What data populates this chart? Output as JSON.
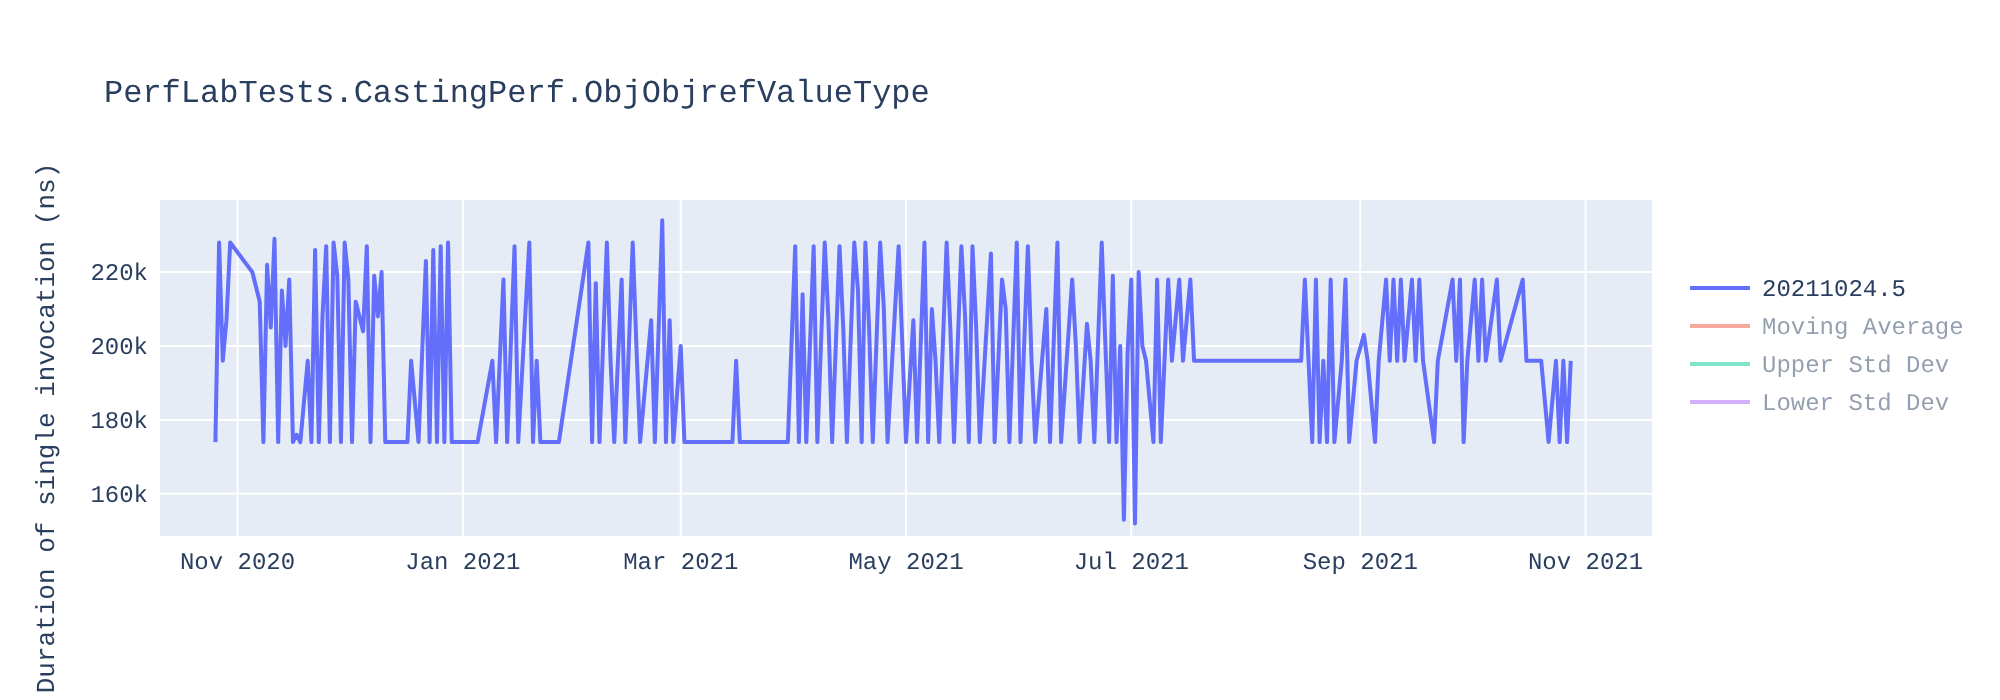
{
  "chart_data": {
    "type": "line",
    "title": "PerfLabTests.CastingPerf.ObjObjrefValueType",
    "ylabel": "Duration of single invocation (ns)",
    "xlim": [
      "2020-10-11",
      "2021-11-19"
    ],
    "xticks": [
      {
        "value": "2020-11-01",
        "label": "Nov 2020"
      },
      {
        "value": "2021-01-01",
        "label": "Jan 2021"
      },
      {
        "value": "2021-03-01",
        "label": "Mar 2021"
      },
      {
        "value": "2021-05-01",
        "label": "May 2021"
      },
      {
        "value": "2021-07-01",
        "label": "Jul 2021"
      },
      {
        "value": "2021-09-01",
        "label": "Sep 2021"
      },
      {
        "value": "2021-11-01",
        "label": "Nov 2021"
      }
    ],
    "ylim": [
      148600,
      239500
    ],
    "yticks": [
      {
        "value": 160000,
        "label": "160k"
      },
      {
        "value": 180000,
        "label": "180k"
      },
      {
        "value": 200000,
        "label": "200k"
      },
      {
        "value": 220000,
        "label": "220k"
      }
    ],
    "grid": true,
    "legend": "top right",
    "marker": "none",
    "line_style": "solid",
    "series": [
      {
        "name": "20211024.5",
        "color": "#636efa",
        "x": [
          "2020-10-26",
          "2020-10-27",
          "2020-10-28",
          "2020-10-29",
          "2020-10-30",
          "2020-11-05",
          "2020-11-07",
          "2020-11-08",
          "2020-11-09",
          "2020-11-10",
          "2020-11-11",
          "2020-11-12",
          "2020-11-13",
          "2020-11-14",
          "2020-11-15",
          "2020-11-16",
          "2020-11-17",
          "2020-11-18",
          "2020-11-20",
          "2020-11-21",
          "2020-11-22",
          "2020-11-23",
          "2020-11-24",
          "2020-11-25",
          "2020-11-26",
          "2020-11-27",
          "2020-11-28",
          "2020-11-29",
          "2020-11-30",
          "2020-12-01",
          "2020-12-02",
          "2020-12-03",
          "2020-12-05",
          "2020-12-06",
          "2020-12-07",
          "2020-12-08",
          "2020-12-09",
          "2020-12-10",
          "2020-12-11",
          "2020-12-17",
          "2020-12-18",
          "2020-12-20",
          "2020-12-22",
          "2020-12-23",
          "2020-12-24",
          "2020-12-25",
          "2020-12-26",
          "2020-12-27",
          "2020-12-28",
          "2020-12-29",
          "2021-01-05",
          "2021-01-09",
          "2021-01-10",
          "2021-01-12",
          "2021-01-13",
          "2021-01-15",
          "2021-01-16",
          "2021-01-19",
          "2021-01-20",
          "2021-01-21",
          "2021-01-22",
          "2021-01-27",
          "2021-02-04",
          "2021-02-05",
          "2021-02-06",
          "2021-02-07",
          "2021-02-09",
          "2021-02-10",
          "2021-02-11",
          "2021-02-13",
          "2021-02-14",
          "2021-02-16",
          "2021-02-17",
          "2021-02-18",
          "2021-02-21",
          "2021-02-22",
          "2021-02-24",
          "2021-02-25",
          "2021-02-26",
          "2021-02-27",
          "2021-03-01",
          "2021-03-02",
          "2021-03-15",
          "2021-03-16",
          "2021-03-17",
          "2021-03-30",
          "2021-04-01",
          "2021-04-02",
          "2021-04-03",
          "2021-04-04",
          "2021-04-06",
          "2021-04-07",
          "2021-04-09",
          "2021-04-10",
          "2021-04-11",
          "2021-04-13",
          "2021-04-14",
          "2021-04-15",
          "2021-04-17",
          "2021-04-18",
          "2021-04-19",
          "2021-04-20",
          "2021-04-21",
          "2021-04-22",
          "2021-04-24",
          "2021-04-25",
          "2021-04-26",
          "2021-04-29",
          "2021-05-01",
          "2021-05-03",
          "2021-05-04",
          "2021-05-06",
          "2021-05-07",
          "2021-05-08",
          "2021-05-09",
          "2021-05-10",
          "2021-05-12",
          "2021-05-13",
          "2021-05-14",
          "2021-05-16",
          "2021-05-17",
          "2021-05-18",
          "2021-05-19",
          "2021-05-20",
          "2021-05-21",
          "2021-05-24",
          "2021-05-25",
          "2021-05-27",
          "2021-05-28",
          "2021-05-29",
          "2021-05-31",
          "2021-06-01",
          "2021-06-03",
          "2021-06-04",
          "2021-06-05",
          "2021-06-08",
          "2021-06-09",
          "2021-06-11",
          "2021-06-12",
          "2021-06-15",
          "2021-06-16",
          "2021-06-17",
          "2021-06-19",
          "2021-06-20",
          "2021-06-21",
          "2021-06-23",
          "2021-06-24",
          "2021-06-25",
          "2021-06-26",
          "2021-06-27",
          "2021-06-28",
          "2021-06-29",
          "2021-06-30",
          "2021-07-01",
          "2021-07-02",
          "2021-07-03",
          "2021-07-04",
          "2021-07-05",
          "2021-07-07",
          "2021-07-08",
          "2021-07-09",
          "2021-07-11",
          "2021-07-12",
          "2021-07-14",
          "2021-07-15",
          "2021-07-17",
          "2021-07-18",
          "2021-08-16",
          "2021-08-17",
          "2021-08-18",
          "2021-08-19",
          "2021-08-20",
          "2021-08-21",
          "2021-08-22",
          "2021-08-23",
          "2021-08-24",
          "2021-08-25",
          "2021-08-27",
          "2021-08-28",
          "2021-08-29",
          "2021-08-31",
          "2021-09-02",
          "2021-09-03",
          "2021-09-05",
          "2021-09-06",
          "2021-09-08",
          "2021-09-09",
          "2021-09-10",
          "2021-09-11",
          "2021-09-12",
          "2021-09-13",
          "2021-09-15",
          "2021-09-16",
          "2021-09-17",
          "2021-09-18",
          "2021-09-21",
          "2021-09-22",
          "2021-09-26",
          "2021-09-27",
          "2021-09-28",
          "2021-09-29",
          "2021-09-30",
          "2021-10-02",
          "2021-10-03",
          "2021-10-04",
          "2021-10-05",
          "2021-10-08",
          "2021-10-09",
          "2021-10-15",
          "2021-10-16",
          "2021-10-20",
          "2021-10-22",
          "2021-10-24",
          "2021-10-25",
          "2021-10-26",
          "2021-10-27",
          "2021-10-28"
        ],
        "values": [
          174000,
          228000,
          196000,
          207000,
          228000,
          220000,
          212000,
          174000,
          222000,
          205000,
          229000,
          174000,
          215000,
          200000,
          218000,
          174000,
          176000,
          174000,
          196000,
          174000,
          226000,
          174000,
          208000,
          227000,
          174000,
          228000,
          219000,
          174000,
          228000,
          218000,
          174000,
          212000,
          204000,
          227000,
          174000,
          219000,
          208000,
          220000,
          174000,
          174000,
          196000,
          174000,
          223000,
          174000,
          226000,
          174000,
          227000,
          174000,
          228000,
          174000,
          174000,
          196000,
          174000,
          218000,
          174000,
          227000,
          174000,
          228000,
          174000,
          196000,
          174000,
          174000,
          228000,
          174000,
          217000,
          174000,
          228000,
          196000,
          174000,
          218000,
          174000,
          228000,
          200000,
          174000,
          207000,
          174000,
          234000,
          174000,
          207000,
          174000,
          200000,
          174000,
          174000,
          196000,
          174000,
          174000,
          227000,
          174000,
          214000,
          174000,
          227000,
          174000,
          228000,
          207000,
          174000,
          227000,
          205000,
          174000,
          228000,
          215000,
          174000,
          228000,
          205000,
          174000,
          228000,
          210000,
          174000,
          227000,
          174000,
          207000,
          174000,
          228000,
          174000,
          210000,
          196000,
          174000,
          228000,
          205000,
          174000,
          227000,
          208000,
          174000,
          227000,
          205000,
          174000,
          225000,
          174000,
          218000,
          210000,
          174000,
          228000,
          174000,
          227000,
          196000,
          174000,
          210000,
          174000,
          228000,
          174000,
          218000,
          200000,
          174000,
          206000,
          196000,
          174000,
          228000,
          200000,
          174000,
          219000,
          174000,
          200000,
          153000,
          198000,
          218000,
          152000,
          220000,
          200000,
          196000,
          174000,
          218000,
          174000,
          218000,
          196000,
          218000,
          196000,
          218000,
          196000,
          196000,
          218000,
          196000,
          174000,
          218000,
          174000,
          196000,
          174000,
          218000,
          174000,
          196000,
          218000,
          174000,
          196000,
          203000,
          196000,
          174000,
          196000,
          218000,
          196000,
          218000,
          196000,
          218000,
          196000,
          218000,
          196000,
          218000,
          196000,
          174000,
          196000,
          218000,
          196000,
          218000,
          174000,
          196000,
          218000,
          196000,
          218000,
          196000,
          218000,
          196000,
          218000,
          196000,
          196000,
          174000,
          196000,
          174000,
          196000,
          174000,
          196000
        ]
      },
      {
        "name": "Moving Average",
        "color": "#ef553b"
      },
      {
        "name": "Upper Std Dev",
        "color": "#00cc96"
      },
      {
        "name": "Lower Std Dev",
        "color": "#ab63fa"
      }
    ]
  }
}
